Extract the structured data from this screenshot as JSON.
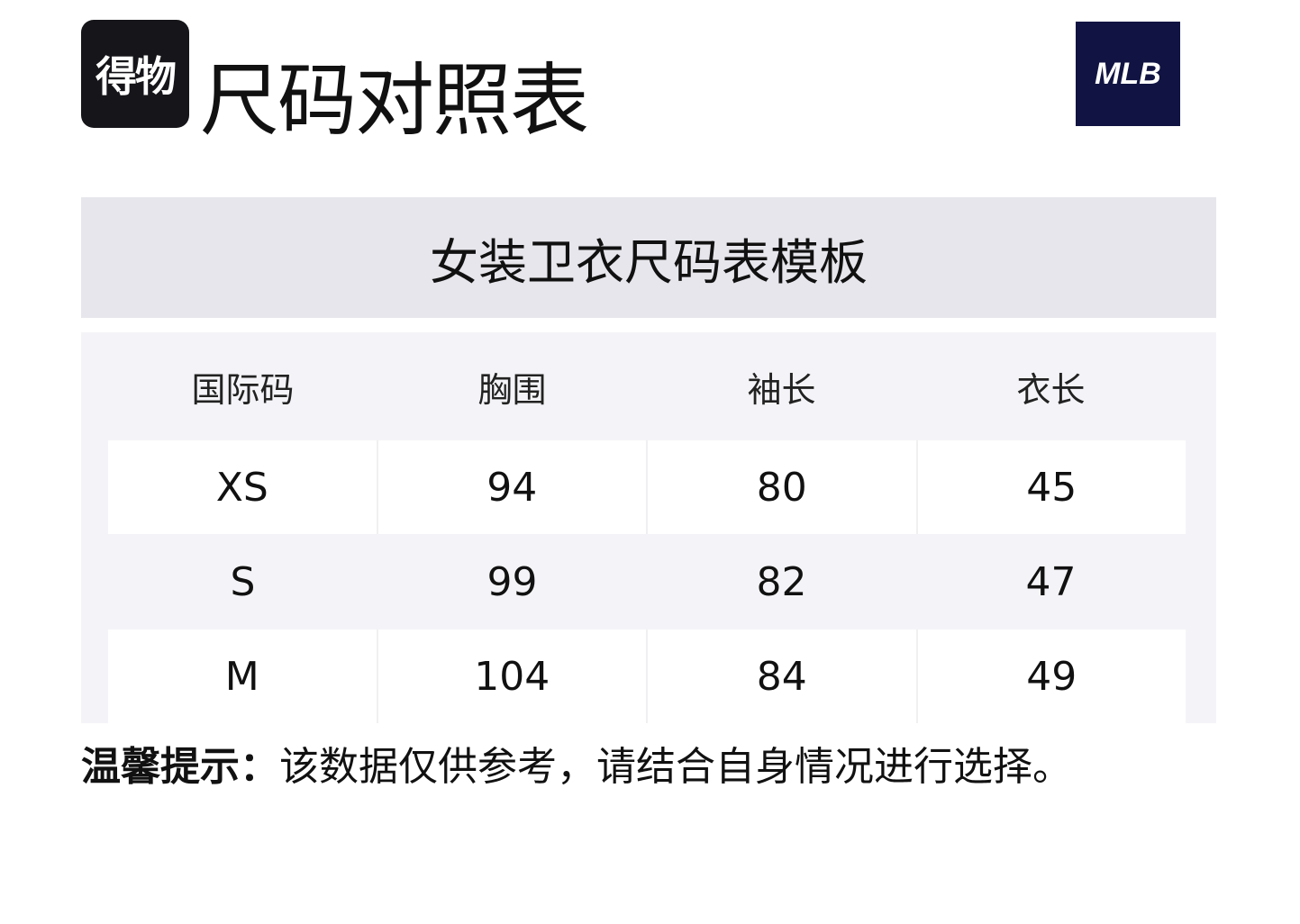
{
  "logo": {
    "text": "得物"
  },
  "title": "尺码对照表",
  "brand_logo": {
    "text": "MLB",
    "color": "#111442"
  },
  "table": {
    "caption": "女装卫衣尺码表模板",
    "headers": [
      "国际码",
      "胸围",
      "袖长",
      "衣长"
    ],
    "rows": [
      [
        "XS",
        "94",
        "80",
        "45"
      ],
      [
        "S",
        "99",
        "82",
        "47"
      ],
      [
        "M",
        "104",
        "84",
        "49"
      ]
    ]
  },
  "tip": {
    "label": "温馨提示：",
    "text": "该数据仅供参考，请结合自身情况进行选择。"
  }
}
